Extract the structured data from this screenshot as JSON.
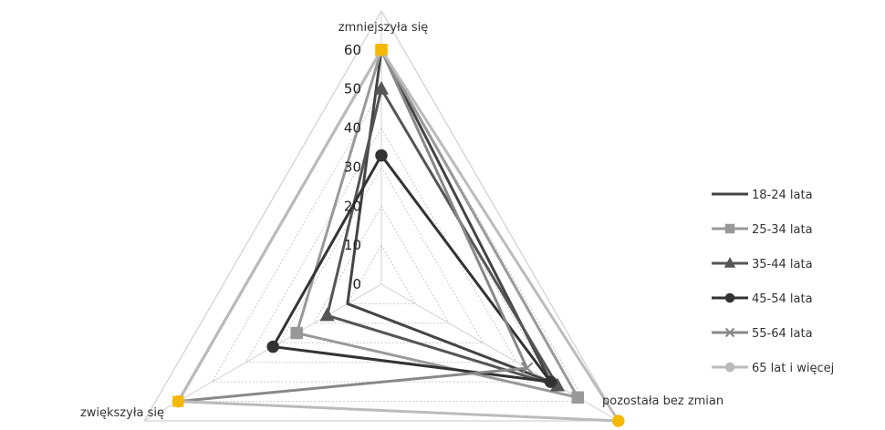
{
  "chart_data": {
    "type": "radar",
    "axes": [
      "zmniejszyła się",
      "pozostała bez zmian",
      "zwiększyła się"
    ],
    "r_ticks": [
      0,
      10,
      20,
      30,
      40,
      50,
      60
    ],
    "r_tick_labels": [
      "0",
      "10",
      "20",
      "30",
      "40",
      "50",
      "60"
    ],
    "rmax": 70,
    "grid": true,
    "legend_position": "right",
    "series": [
      {
        "name": "18-24 lata",
        "values": [
          60,
          50,
          10
        ],
        "color": "#444444",
        "marker": "none"
      },
      {
        "name": "25-34 lata",
        "values": [
          60,
          58,
          25
        ],
        "color": "#999999",
        "marker": "square"
      },
      {
        "name": "35-44 lata",
        "values": [
          50,
          52,
          16
        ],
        "color": "#555555",
        "marker": "triangle"
      },
      {
        "name": "45-54 lata",
        "values": [
          33,
          50,
          32
        ],
        "color": "#333333",
        "marker": "circle"
      },
      {
        "name": "55-64 lata",
        "values": [
          60,
          43,
          60
        ],
        "color": "#888888",
        "marker": "x"
      },
      {
        "name": "65 lat i więcej",
        "values": [
          60,
          70,
          60
        ],
        "color": "#bbbbbb",
        "marker": "circle"
      }
    ],
    "highlight_color": "#f5b800"
  }
}
